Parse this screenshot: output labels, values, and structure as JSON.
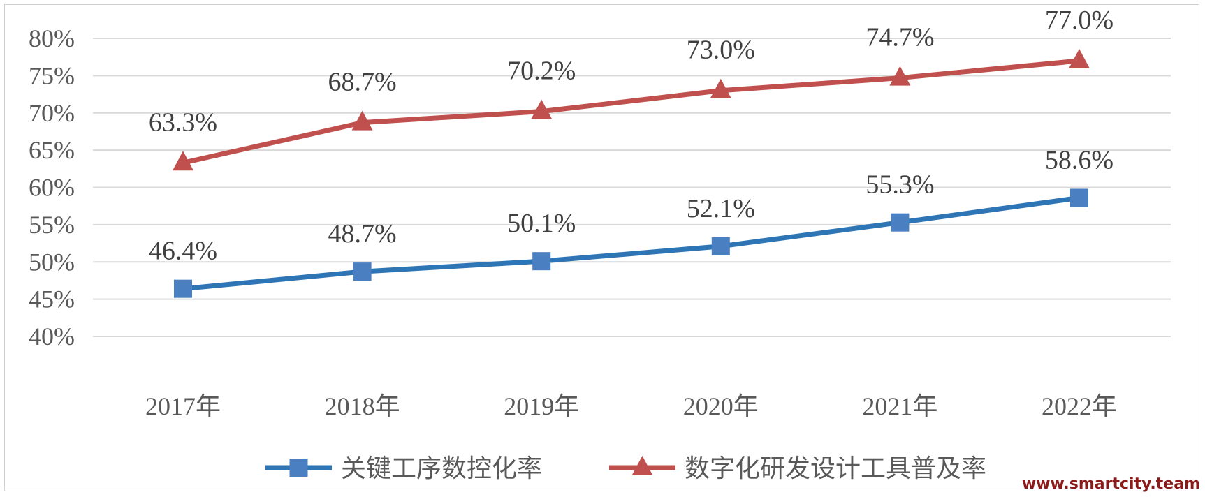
{
  "chart_data": {
    "type": "line",
    "categories": [
      "2017年",
      "2018年",
      "2019年",
      "2020年",
      "2021年",
      "2022年"
    ],
    "series": [
      {
        "name": "关键工序数控化率",
        "values": [
          46.4,
          48.7,
          50.1,
          52.1,
          55.3,
          58.6
        ],
        "labels": [
          "46.4%",
          "48.7%",
          "50.1%",
          "52.1%",
          "55.3%",
          "58.6%"
        ],
        "color": "#2e75b6",
        "marker_color": "#4a7fc1",
        "marker": "square"
      },
      {
        "name": "数字化研发设计工具普及率",
        "values": [
          63.3,
          68.7,
          70.2,
          73.0,
          74.7,
          77.0
        ],
        "labels": [
          "63.3%",
          "68.7%",
          "70.2%",
          "73.0%",
          "74.7%",
          "77.0%"
        ],
        "color": "#c0504d",
        "marker_color": "#c0504d",
        "marker": "triangle"
      }
    ],
    "ylim": [
      40,
      80
    ],
    "yticks": [
      40,
      45,
      50,
      55,
      60,
      65,
      70,
      75,
      80
    ],
    "ytick_labels": [
      "40%",
      "45%",
      "50%",
      "55%",
      "60%",
      "65%",
      "70%",
      "75%",
      "80%"
    ],
    "grid": true,
    "legend": "bottom",
    "title": "",
    "xlabel": "",
    "ylabel": ""
  },
  "watermark": "www.smartcity.team"
}
